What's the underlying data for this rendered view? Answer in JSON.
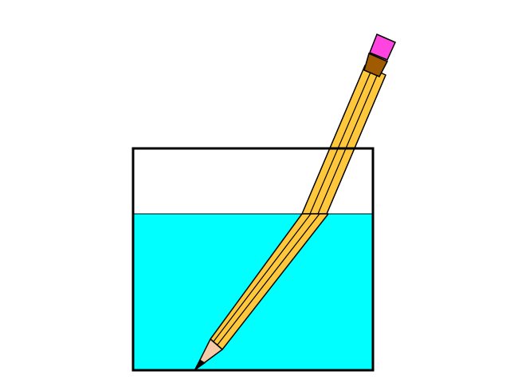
{
  "figure": {
    "subject": "pencil-in-water-refraction",
    "colors": {
      "background": "#ffffff",
      "outline": "#000000",
      "water": "#00ffff",
      "pencil_body": "#ffc83c",
      "pencil_wood": "#f5cba7",
      "eraser": "#ff44e0",
      "ferrule": "#a05a00"
    }
  }
}
